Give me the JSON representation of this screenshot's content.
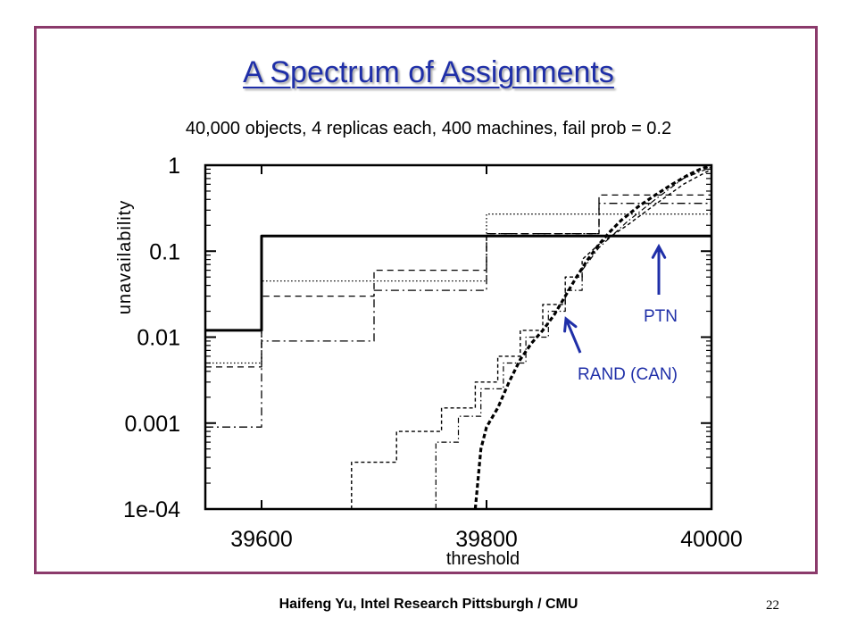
{
  "slide": {
    "title": "A Spectrum of Assignments",
    "subtitle": "40,000 objects, 4 replicas each, 400 machines, fail prob = 0.2",
    "footer": "Haifeng Yu, Intel Research Pittsburgh / CMU",
    "page_number": "22"
  },
  "chart_data": {
    "type": "line",
    "xlabel": "threshold",
    "ylabel": "unavailability",
    "xlim": [
      39550,
      40000
    ],
    "ylim": [
      0.0001,
      1
    ],
    "yscale": "log",
    "xticks": [
      39600,
      39800,
      40000
    ],
    "xtick_labels": [
      "39600",
      "39800",
      "40000"
    ],
    "yticks": [
      1,
      0.1,
      0.01,
      0.001,
      0.0001
    ],
    "ytick_labels": [
      "1",
      "0.1",
      "0.01",
      "0.001",
      "1e-04"
    ],
    "grid": false,
    "accent_color": "#1f2fa8",
    "series": [
      {
        "label": "PTN",
        "style": "solid-thick",
        "points": [
          [
            39550,
            0.012
          ],
          [
            39600,
            0.012
          ],
          [
            39600,
            0.15
          ],
          [
            40000,
            0.15
          ]
        ]
      },
      {
        "label": "",
        "style": "dotted",
        "points": [
          [
            39550,
            0.005
          ],
          [
            39600,
            0.005
          ],
          [
            39600,
            0.045
          ],
          [
            39800,
            0.045
          ],
          [
            39800,
            0.27
          ],
          [
            40000,
            0.27
          ]
        ]
      },
      {
        "label": "",
        "style": "dashed",
        "points": [
          [
            39550,
            0.0045
          ],
          [
            39600,
            0.0045
          ],
          [
            39600,
            0.03
          ],
          [
            39700,
            0.03
          ],
          [
            39700,
            0.06
          ],
          [
            39800,
            0.06
          ],
          [
            39800,
            0.16
          ],
          [
            39900,
            0.16
          ],
          [
            39900,
            0.45
          ],
          [
            40000,
            0.45
          ]
        ]
      },
      {
        "label": "",
        "style": "dash-dot",
        "points": [
          [
            39550,
            0.0009
          ],
          [
            39600,
            0.0009
          ],
          [
            39600,
            0.009
          ],
          [
            39700,
            0.009
          ],
          [
            39700,
            0.035
          ],
          [
            39800,
            0.035
          ],
          [
            39800,
            0.16
          ],
          [
            39900,
            0.16
          ],
          [
            39900,
            0.36
          ],
          [
            40000,
            0.36
          ]
        ]
      },
      {
        "label": "",
        "style": "fine-dashed",
        "points": [
          [
            39680,
            0.0001
          ],
          [
            39680,
            0.00035
          ],
          [
            39720,
            0.00035
          ],
          [
            39720,
            0.0008
          ],
          [
            39760,
            0.0008
          ],
          [
            39760,
            0.0015
          ],
          [
            39790,
            0.0015
          ],
          [
            39790,
            0.003
          ],
          [
            39810,
            0.003
          ],
          [
            39810,
            0.006
          ],
          [
            39830,
            0.006
          ],
          [
            39830,
            0.012
          ],
          [
            39850,
            0.012
          ],
          [
            39850,
            0.024
          ],
          [
            39870,
            0.024
          ],
          [
            39870,
            0.05
          ],
          [
            39885,
            0.05
          ],
          [
            39885,
            0.08
          ],
          [
            39900,
            0.12
          ],
          [
            39925,
            0.2
          ],
          [
            39950,
            0.35
          ],
          [
            39975,
            0.6
          ],
          [
            40000,
            0.9
          ]
        ]
      },
      {
        "label": "",
        "style": "dash-dot-light",
        "points": [
          [
            39755,
            0.0001
          ],
          [
            39755,
            0.0006
          ],
          [
            39775,
            0.0006
          ],
          [
            39775,
            0.0012
          ],
          [
            39795,
            0.0012
          ],
          [
            39795,
            0.0025
          ],
          [
            39815,
            0.0025
          ],
          [
            39815,
            0.005
          ],
          [
            39835,
            0.005
          ],
          [
            39835,
            0.01
          ],
          [
            39855,
            0.01
          ],
          [
            39855,
            0.02
          ],
          [
            39870,
            0.02
          ],
          [
            39870,
            0.035
          ],
          [
            39885,
            0.035
          ],
          [
            39885,
            0.06
          ],
          [
            39900,
            0.11
          ],
          [
            39925,
            0.22
          ],
          [
            39950,
            0.4
          ],
          [
            39975,
            0.7
          ],
          [
            40000,
            0.95
          ]
        ]
      },
      {
        "label": "RAND (CAN)",
        "style": "dashed-thick",
        "points": [
          [
            39790,
            0.0001
          ],
          [
            39795,
            0.0005
          ],
          [
            39800,
            0.0009
          ],
          [
            39810,
            0.0015
          ],
          [
            39820,
            0.003
          ],
          [
            39830,
            0.0055
          ],
          [
            39840,
            0.0085
          ],
          [
            39850,
            0.012
          ],
          [
            39860,
            0.018
          ],
          [
            39870,
            0.03
          ],
          [
            39880,
            0.05
          ],
          [
            39890,
            0.08
          ],
          [
            39900,
            0.12
          ],
          [
            39910,
            0.17
          ],
          [
            39920,
            0.23
          ],
          [
            39935,
            0.33
          ],
          [
            39950,
            0.45
          ],
          [
            39965,
            0.6
          ],
          [
            39980,
            0.78
          ],
          [
            39990,
            0.9
          ],
          [
            40000,
            1
          ]
        ]
      }
    ],
    "annotations": [
      {
        "text": "PTN",
        "target_series": "PTN"
      },
      {
        "text": "RAND (CAN)",
        "target_series": "RAND (CAN)"
      }
    ]
  }
}
